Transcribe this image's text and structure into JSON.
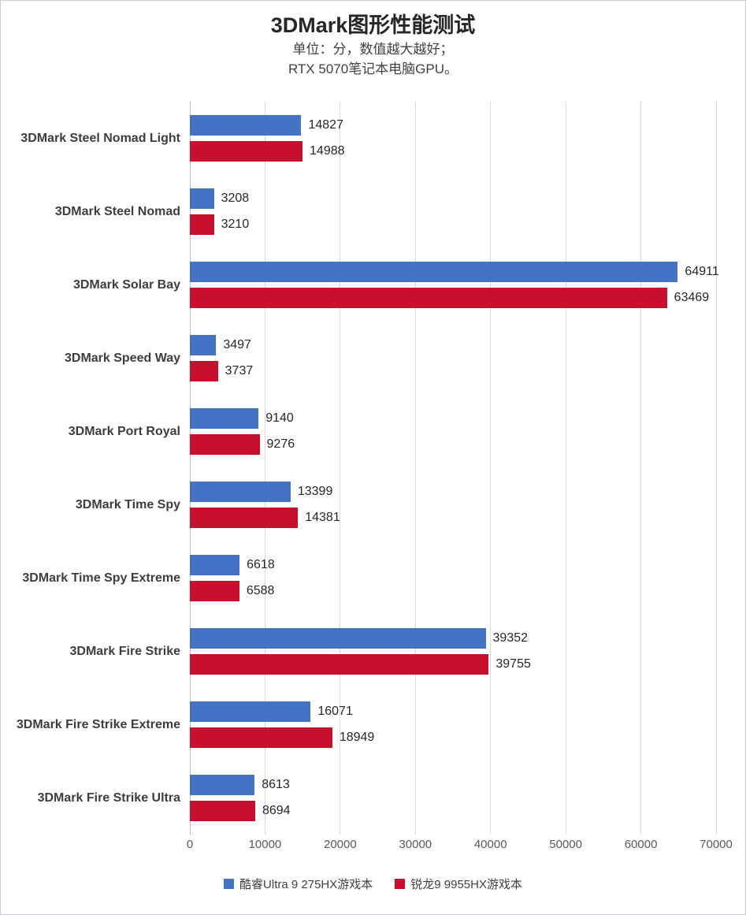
{
  "title": "3DMark图形性能测试",
  "subtitle_line1": "单位：分，数值越大越好；",
  "subtitle_line2": "RTX 5070笔记本电脑GPU。",
  "colors": {
    "series1": "#4472C4",
    "series2": "#C8102E",
    "gridline": "#D9D9D9"
  },
  "chart_data": {
    "type": "bar",
    "orientation": "horizontal",
    "title": "3DMark图形性能测试",
    "subtitle": [
      "单位：分，数值越大越好；",
      "RTX 5070笔记本电脑GPU。"
    ],
    "categories": [
      "3DMark Steel Nomad Light",
      "3DMark Steel Nomad",
      "3DMark Solar Bay",
      "3DMark Speed Way",
      "3DMark Port Royal",
      "3DMark Time Spy",
      "3DMark Time Spy Extreme",
      "3DMark Fire Strike",
      "3DMark Fire Strike Extreme",
      "3DMark Fire Strike Ultra"
    ],
    "series": [
      {
        "key": "ultra9-275hx",
        "name": "酷睿Ultra 9 275HX游戏本",
        "color": "#4472C4",
        "values": [
          14827,
          3208,
          64911,
          3497,
          9140,
          13399,
          6618,
          39352,
          16071,
          8613
        ]
      },
      {
        "key": "ryzen9-9955hx",
        "name": "锐龙9 9955HX游戏本",
        "color": "#C8102E",
        "values": [
          14988,
          3210,
          63469,
          3737,
          9276,
          14381,
          6588,
          39755,
          18949,
          8694
        ]
      }
    ],
    "xlim": [
      0,
      70000
    ],
    "x_ticks": [
      0,
      10000,
      20000,
      30000,
      40000,
      50000,
      60000,
      70000
    ],
    "grid": true,
    "legend_position": "bottom"
  }
}
